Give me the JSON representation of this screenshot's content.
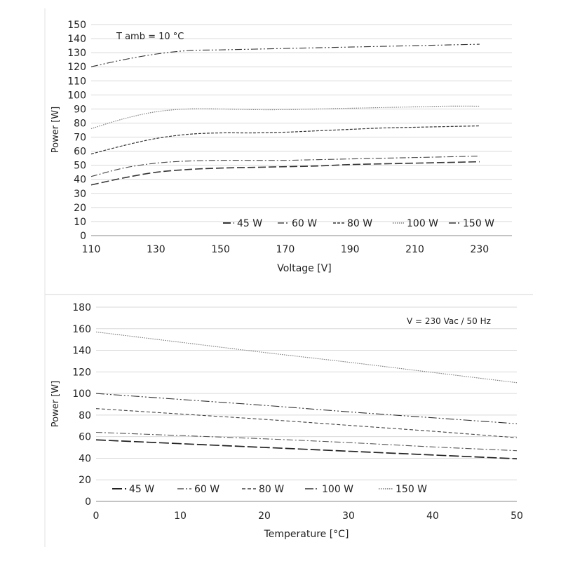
{
  "chart_data": [
    {
      "type": "line",
      "title": "",
      "annotation": "T amb = 10 °C",
      "xlabel": "Voltage  [V]",
      "ylabel": "Power [W]",
      "xlim": [
        110,
        240
      ],
      "ylim": [
        0,
        150
      ],
      "xticks": [
        110,
        130,
        150,
        170,
        190,
        210,
        230
      ],
      "yticks": [
        0,
        10,
        20,
        30,
        40,
        50,
        60,
        70,
        80,
        90,
        100,
        110,
        120,
        130,
        140,
        150
      ],
      "grid": "horizontal",
      "legend_position": "bottom-right",
      "x": [
        110,
        120,
        130,
        140,
        150,
        160,
        170,
        180,
        190,
        200,
        210,
        220,
        230
      ],
      "series": [
        {
          "name": "45 W",
          "values": [
            36,
            41,
            45,
            47,
            48,
            48.5,
            49,
            49.5,
            50.5,
            51,
            51.5,
            52,
            52.5
          ]
        },
        {
          "name": "60 W",
          "values": [
            42,
            48,
            51.5,
            53,
            53.5,
            53.5,
            53.5,
            54,
            54.5,
            55,
            55.5,
            56,
            56.5
          ]
        },
        {
          "name": "80 W",
          "values": [
            58,
            64,
            69,
            72,
            73,
            73,
            73.5,
            74.5,
            75.5,
            76.5,
            77,
            77.5,
            78
          ]
        },
        {
          "name": "100 W",
          "values": [
            76,
            83,
            88,
            90,
            90,
            89.5,
            89.5,
            90,
            90.5,
            91,
            91.5,
            92,
            92
          ]
        },
        {
          "name": "150 W",
          "values": [
            120,
            125,
            129,
            131.5,
            132,
            132.5,
            133,
            133.5,
            134,
            134.5,
            135,
            135.5,
            136
          ]
        }
      ]
    },
    {
      "type": "line",
      "title": "",
      "annotation": "V = 230 Vac  / 50 Hz",
      "xlabel": "Temperature [°C]",
      "ylabel": "Power [W]",
      "xlim": [
        0,
        50
      ],
      "ylim": [
        0,
        180
      ],
      "xticks": [
        0,
        10,
        20,
        30,
        40,
        50
      ],
      "yticks": [
        0,
        20,
        40,
        60,
        80,
        100,
        120,
        140,
        160,
        180
      ],
      "grid": "horizontal",
      "legend_position": "bottom-left",
      "x": [
        0,
        10,
        20,
        30,
        40,
        50
      ],
      "series": [
        {
          "name": "45 W",
          "values": [
            57,
            53.5,
            50,
            46.5,
            43,
            39.5
          ]
        },
        {
          "name": "60 W",
          "values": [
            64,
            61,
            58,
            54.5,
            50.5,
            47
          ]
        },
        {
          "name": "80 W",
          "values": [
            86,
            81,
            76,
            70.5,
            65,
            59
          ]
        },
        {
          "name": "100 W",
          "values": [
            100,
            94.5,
            89,
            83,
            77.5,
            72
          ]
        },
        {
          "name": "150 W",
          "values": [
            157,
            147.5,
            138,
            129,
            119.5,
            110
          ]
        }
      ]
    }
  ]
}
